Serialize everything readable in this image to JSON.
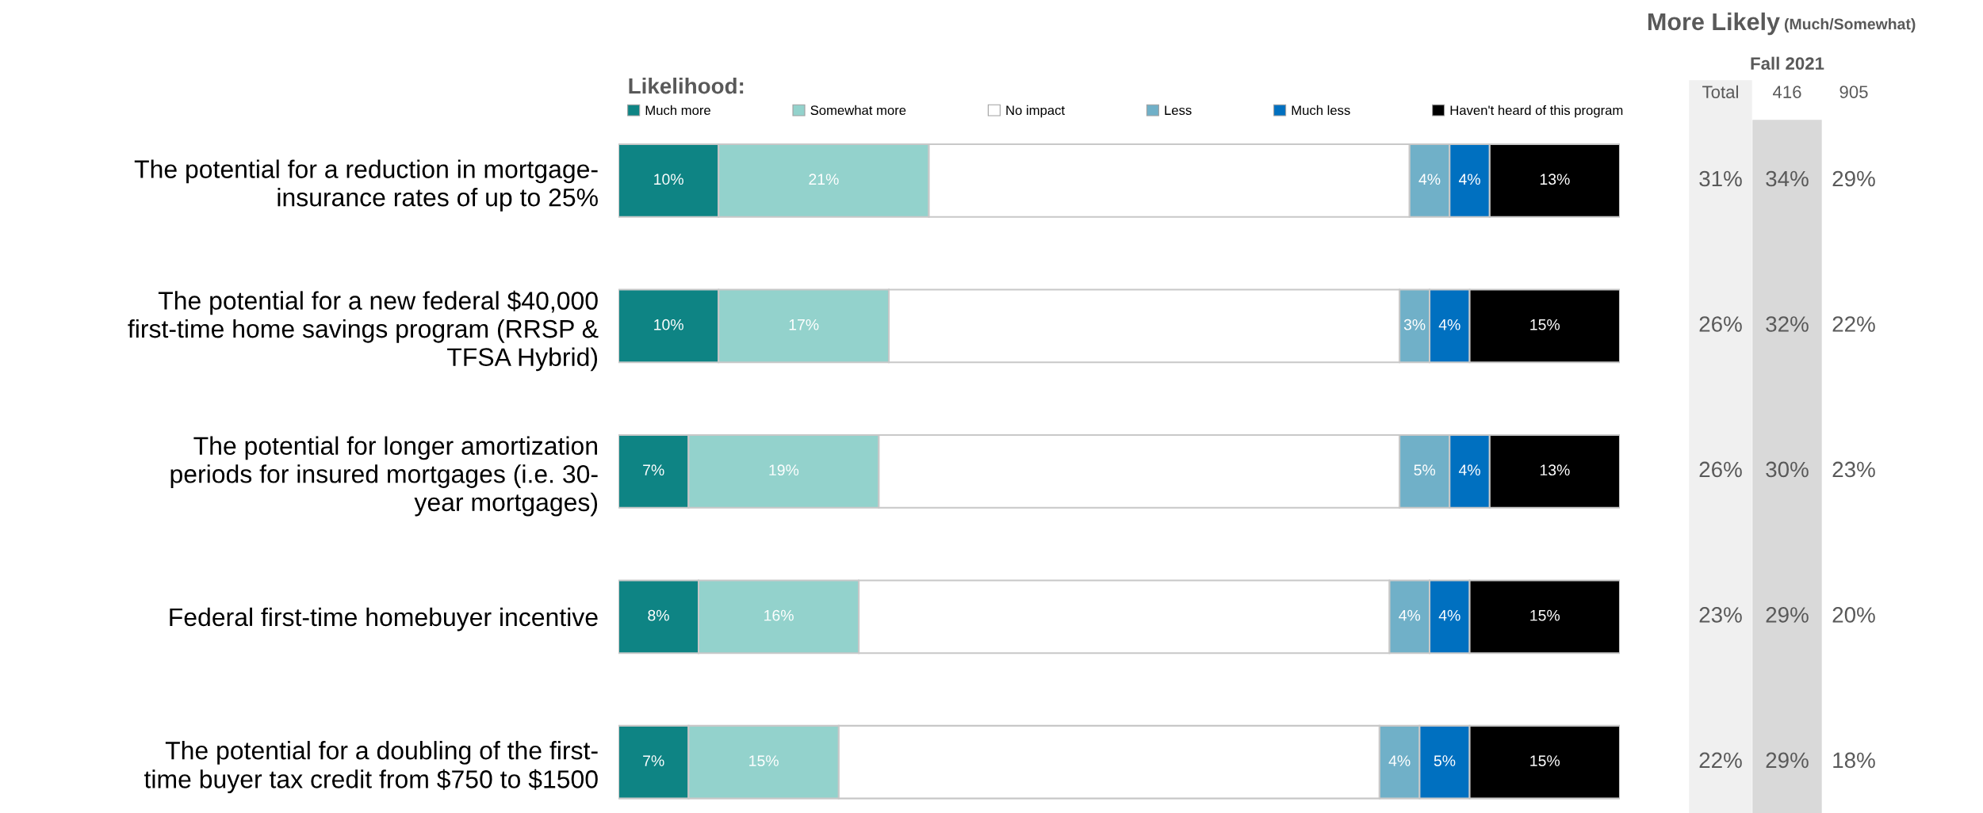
{
  "chart_data": {
    "type": "bar",
    "orientation": "horizontal",
    "stacked": true,
    "legend": "top",
    "legend_title": "Likelihood:",
    "marker": "square",
    "categories": [
      "The potential for a reduction in mortgage-\ninsurance rates of up to 25%",
      "The potential for a new federal $40,000\nfirst-time home savings program (RRSP &\nTFSA Hybrid)",
      "The potential for longer amortization\nperiods for insured mortgages (i.e. 30-\nyear mortgages)",
      "Federal first-time homebuyer incentive",
      "The potential for a doubling of the first-\ntime buyer tax credit from $750 to $1500"
    ],
    "xlim": [
      0,
      100
    ],
    "tick_labels": "y",
    "grid": false,
    "series": [
      {
        "name": "Much more",
        "color": "#0e8484",
        "values": [
          10,
          10,
          7,
          8,
          7
        ],
        "value_labels": [
          "10%",
          "10%",
          "7%",
          "8%",
          "7%"
        ]
      },
      {
        "name": "Somewhat more",
        "color": "#93d2cc",
        "values": [
          21,
          17,
          19,
          16,
          15
        ],
        "value_labels": [
          "21%",
          "17%",
          "19%",
          "16%",
          "15%"
        ]
      },
      {
        "name": "No impact",
        "color": "#ffffff",
        "values": [
          48,
          51,
          52,
          53,
          54
        ],
        "value_labels": [
          null,
          null,
          null,
          null,
          null
        ]
      },
      {
        "name": "Less",
        "color": "#70b0c8",
        "values": [
          4,
          3,
          5,
          4,
          4
        ],
        "value_labels": [
          "4%",
          "3%",
          "5%",
          "4%",
          "4%"
        ]
      },
      {
        "name": "Much less",
        "color": "#0070c0",
        "values": [
          4,
          4,
          4,
          4,
          5
        ],
        "value_labels": [
          "4%",
          "4%",
          "4%",
          "4%",
          "5%"
        ]
      },
      {
        "name": "Haven't heard of this program",
        "color": "#000000",
        "values": [
          13,
          15,
          13,
          15,
          15
        ],
        "value_labels": [
          "13%",
          "15%",
          "13%",
          "15%",
          "15%"
        ]
      }
    ],
    "annotations": [
      "More Likely",
      "(Much/Somewhat)",
      "Fall 2021",
      "Total",
      "416",
      "905",
      "31%",
      "34%",
      "29%",
      "26%",
      "32%",
      "22%",
      "26%",
      "30%",
      "23%",
      "23%",
      "29%",
      "20%",
      "22%",
      "29%",
      "18%"
    ]
  }
}
